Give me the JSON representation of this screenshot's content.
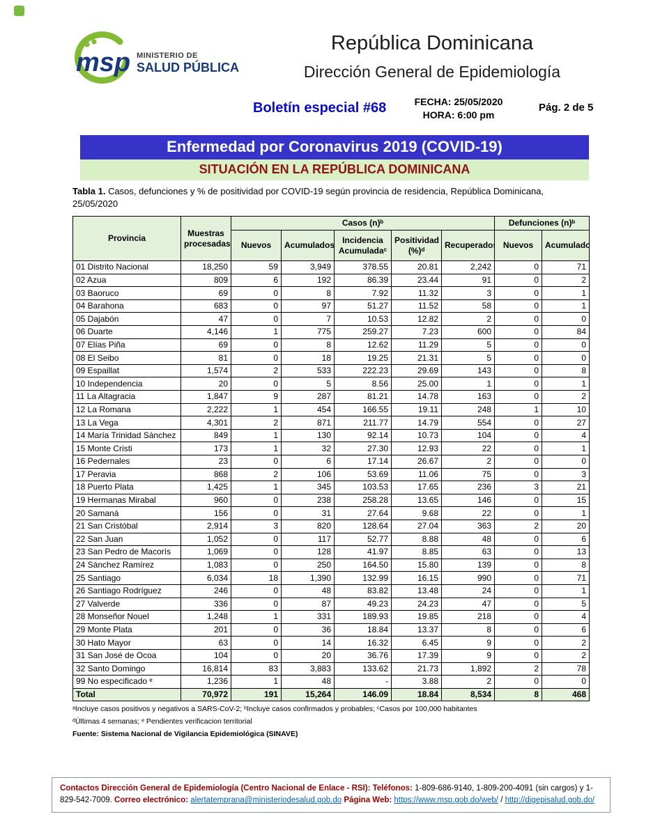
{
  "colors": {
    "banner_blue": "#3533c8",
    "banner_green_bg": "#d9f0c6",
    "banner_subtitle_red": "#8f1414",
    "table_header_green": "#e4f1da",
    "bulletin_blue": "#0a0ac9",
    "footer_maroon": "#990000",
    "link_blue": "#0563c1",
    "logo_green": "#82bb33",
    "logo_blue": "#16397e"
  },
  "header": {
    "ministry_line1": "MINISTERIO DE",
    "ministry_line2": "SALUD PÚBLICA",
    "country": "República Dominicana",
    "department": "Dirección General de Epidemiología",
    "bulletin": "Boletín especial #68",
    "fecha": "FECHA: 25/05/2020",
    "hora": "HORA: 6:00 pm",
    "page": "Pág. 2 de 5"
  },
  "banners": {
    "title": "Enfermedad por Coronavirus 2019 (COVID-19)",
    "subtitle": "SITUACIÓN EN LA REPÚBLICA DOMINICANA"
  },
  "caption": {
    "label": "Tabla 1.",
    "text": " Casos, defunciones y % de positividad por COVID-19 según provincia de residencia, República Dominicana, 25/05/2020"
  },
  "table": {
    "col_provincia": "Provincia",
    "col_muestras": "Muestras procesadasᵃ",
    "group_casos": "Casos (n)ᵇ",
    "group_defunciones": "Defunciones (n)ᵇ",
    "sub_headers": [
      "Nuevos",
      "Acumulados",
      "Incidencia Acumuladaᶜ",
      "Positividad (%)ᵈ",
      "Recuperados",
      "Nuevos",
      "Acumulados"
    ],
    "rows": [
      [
        "01 Distrito Nacional",
        "18,250",
        "59",
        "3,949",
        "378.55",
        "20.81",
        "2,242",
        "0",
        "71"
      ],
      [
        "02 Azua",
        "809",
        "6",
        "192",
        "86.39",
        "23.44",
        "91",
        "0",
        "2"
      ],
      [
        "03 Baoruco",
        "69",
        "0",
        "8",
        "7.92",
        "11.32",
        "3",
        "0",
        "1"
      ],
      [
        "04 Barahona",
        "683",
        "0",
        "97",
        "51.27",
        "11.52",
        "58",
        "0",
        "1"
      ],
      [
        "05 Dajabón",
        "47",
        "0",
        "7",
        "10.53",
        "12.82",
        "2",
        "0",
        "0"
      ],
      [
        "06 Duarte",
        "4,146",
        "1",
        "775",
        "259.27",
        "7.23",
        "600",
        "0",
        "84"
      ],
      [
        "07 Elías Piña",
        "69",
        "0",
        "8",
        "12.62",
        "11.29",
        "5",
        "0",
        "0"
      ],
      [
        "08 El Seibo",
        "81",
        "0",
        "18",
        "19.25",
        "21.31",
        "5",
        "0",
        "0"
      ],
      [
        "09 Espaillat",
        "1,574",
        "2",
        "533",
        "222.23",
        "29.69",
        "143",
        "0",
        "8"
      ],
      [
        "10 Independencia",
        "20",
        "0",
        "5",
        "8.56",
        "25.00",
        "1",
        "0",
        "1"
      ],
      [
        "11 La Altagracia",
        "1,847",
        "9",
        "287",
        "81.21",
        "14.78",
        "163",
        "0",
        "2"
      ],
      [
        "12 La Romana",
        "2,222",
        "1",
        "454",
        "166.55",
        "19.11",
        "248",
        "1",
        "10"
      ],
      [
        "13 La Vega",
        "4,301",
        "2",
        "871",
        "211.77",
        "14.79",
        "554",
        "0",
        "27"
      ],
      [
        "14 María Trinidad Sánchez",
        "849",
        "1",
        "130",
        "92.14",
        "10.73",
        "104",
        "0",
        "4"
      ],
      [
        "15 Monte Cristi",
        "173",
        "1",
        "32",
        "27.30",
        "12.93",
        "22",
        "0",
        "1"
      ],
      [
        "16 Pedernales",
        "23",
        "0",
        "6",
        "17.14",
        "26.67",
        "2",
        "0",
        "0"
      ],
      [
        "17 Peravia",
        "868",
        "2",
        "106",
        "53.69",
        "11.06",
        "75",
        "0",
        "3"
      ],
      [
        "18 Puerto Plata",
        "1,425",
        "1",
        "345",
        "103.53",
        "17.65",
        "236",
        "3",
        "21"
      ],
      [
        "19 Hermanas Mirabal",
        "960",
        "0",
        "238",
        "258.28",
        "13.65",
        "146",
        "0",
        "15"
      ],
      [
        "20 Samaná",
        "156",
        "0",
        "31",
        "27.64",
        "9.68",
        "22",
        "0",
        "1"
      ],
      [
        "21 San Cristóbal",
        "2,914",
        "3",
        "820",
        "128.64",
        "27.04",
        "363",
        "2",
        "20"
      ],
      [
        "22 San Juan",
        "1,052",
        "0",
        "117",
        "52.77",
        "8.88",
        "48",
        "0",
        "6"
      ],
      [
        "23 San Pedro de Macorís",
        "1,069",
        "0",
        "128",
        "41.97",
        "8.85",
        "63",
        "0",
        "13"
      ],
      [
        "24 Sánchez Ramírez",
        "1,083",
        "0",
        "250",
        "164.50",
        "15.80",
        "139",
        "0",
        "8"
      ],
      [
        "25 Santiago",
        "6,034",
        "18",
        "1,390",
        "132.99",
        "16.15",
        "990",
        "0",
        "71"
      ],
      [
        "26 Santiago Rodríguez",
        "246",
        "0",
        "48",
        "83.82",
        "13.48",
        "24",
        "0",
        "1"
      ],
      [
        "27 Valverde",
        "336",
        "0",
        "87",
        "49.23",
        "24.23",
        "47",
        "0",
        "5"
      ],
      [
        "28 Monseñor Nouel",
        "1,248",
        "1",
        "331",
        "189.93",
        "19.85",
        "218",
        "0",
        "4"
      ],
      [
        "29 Monte Plata",
        "201",
        "0",
        "36",
        "18.84",
        "13.37",
        "8",
        "0",
        "6"
      ],
      [
        "30 Hato Mayor",
        "63",
        "0",
        "14",
        "16.32",
        "6.45",
        "9",
        "0",
        "2"
      ],
      [
        "31 San José de Ocoa",
        "104",
        "0",
        "20",
        "36.76",
        "17.39",
        "9",
        "0",
        "2"
      ],
      [
        "32 Santo Domingo",
        "16,814",
        "83",
        "3,883",
        "133.62",
        "21.73",
        "1,892",
        "2",
        "78"
      ],
      [
        "99 No especificado ᵉ",
        "1,236",
        "1",
        "48",
        "-",
        "3.88",
        "2",
        "0",
        "0"
      ]
    ],
    "total": [
      "Total",
      "70,972",
      "191",
      "15,264",
      "146.09",
      "18.84",
      "8,534",
      "8",
      "468"
    ]
  },
  "footnotes": [
    "ᵃIncluye casos positivos y negativos a SARS-CoV-2; ᵇIncluye casos confirmados y probables; ᶜCasos por 100,000 habitantes",
    "ᵈÚltimas 4 semanas; ᵉ Pendientes verificacion territorial"
  ],
  "fuente": "Fuente: Sistema Nacional de Vigilancia Epidemiológica (SINAVE)",
  "footer": {
    "label": "Contactos Dirección General de Epidemiología (Centro Nacional de Enlace - RSI):",
    "tel_label": "Teléfonos:",
    "tel_text": "1-809-686-9140, 1-809-200-4091 (sin cargos) y 1-829-542-7009.",
    "email_label": "Correo electrónico:",
    "email": "alertatemprana@ministeriodesalud.gob.do",
    "web_label": "Página Web:",
    "web1": "https://www.msp.gob.do/web/",
    "web_sep": "/",
    "web2": "http://digepisalud.gob.do/"
  }
}
